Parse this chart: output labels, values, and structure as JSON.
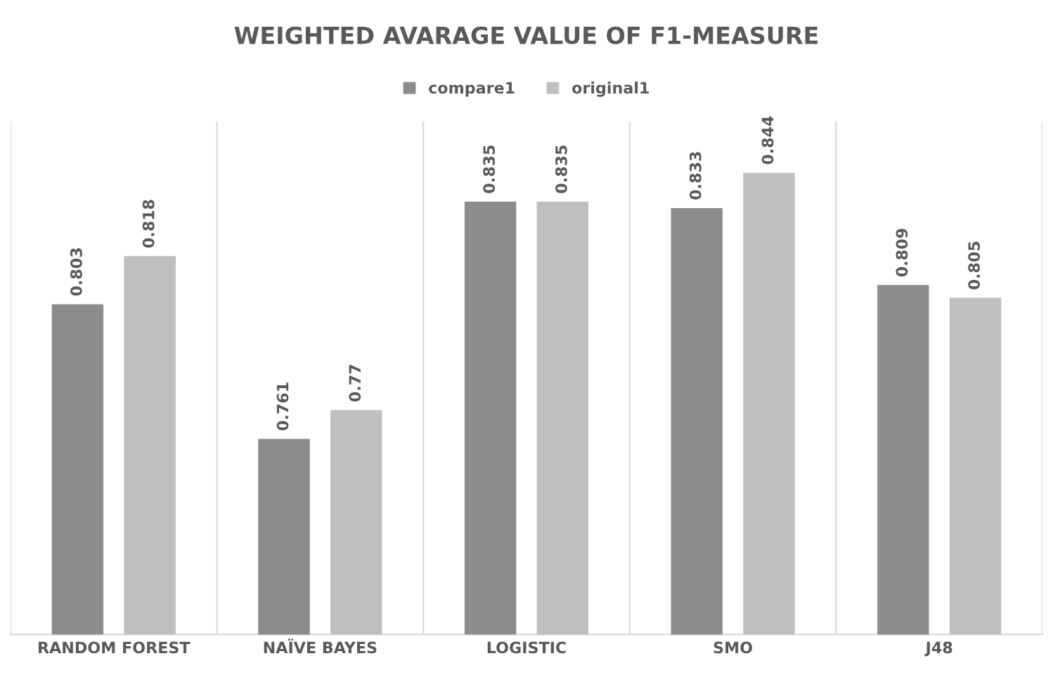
{
  "chart_data": {
    "type": "bar",
    "title": "WEIGHTED AVARAGE VALUE OF F1-MEASURE",
    "categories": [
      "RANDOM FOREST",
      "NAÏVE BAYES",
      "LOGISTIC",
      "SMO",
      "J48"
    ],
    "series": [
      {
        "name": "compare1",
        "color": "#8c8c8c",
        "values": [
          0.803,
          0.761,
          0.835,
          0.833,
          0.809
        ]
      },
      {
        "name": "original1",
        "color": "#bfbfbf",
        "values": [
          0.818,
          0.77,
          0.835,
          0.844,
          0.805
        ]
      }
    ],
    "ylim": [
      0.7,
      0.86
    ],
    "tick_labels": "x",
    "data_labels": true,
    "grid": "x",
    "legend": "top"
  }
}
